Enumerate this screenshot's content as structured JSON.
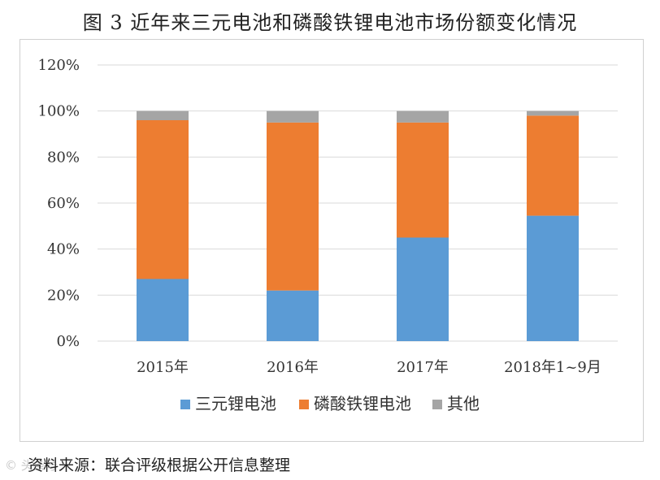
{
  "title": "图 3    近年来三元电池和磷酸铁锂电池市场份额变化情况",
  "source": "资料来源：联合评级根据公开信息整理",
  "watermark": "© 头条号",
  "colors": {
    "ternary": "#5b9bd5",
    "lfp": "#ed7d31",
    "other": "#a5a5a5",
    "grid": "#d9d9d9"
  },
  "chart_data": {
    "type": "bar",
    "stacked": true,
    "percent": true,
    "title": "图 3    近年来三元电池和磷酸铁锂电池市场份额变化情况",
    "xlabel": "",
    "ylabel": "",
    "categories": [
      "2015年",
      "2016年",
      "2017年",
      "2018年1~9月"
    ],
    "ylim": [
      0,
      120
    ],
    "yticks": [
      "0%",
      "20%",
      "40%",
      "60%",
      "80%",
      "100%",
      "120%"
    ],
    "grid": true,
    "legend": "bottom",
    "series": [
      {
        "name": "三元锂电池",
        "values": [
          27,
          22,
          45,
          54.5
        ]
      },
      {
        "name": "磷酸铁锂电池",
        "values": [
          69,
          73,
          50,
          43.5
        ]
      },
      {
        "name": "其他",
        "values": [
          4,
          5,
          5,
          2
        ]
      }
    ]
  }
}
